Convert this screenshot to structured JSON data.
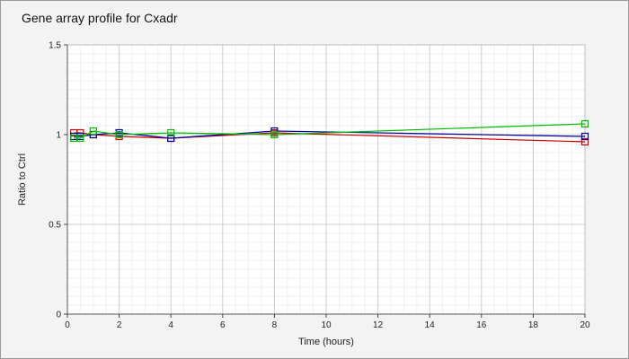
{
  "chart_data": {
    "type": "line",
    "title": "Gene array profile for Cxadr",
    "xlabel": "Time (hours)",
    "ylabel": "Ratio to Ctrl",
    "xlim": [
      0,
      20
    ],
    "ylim": [
      0,
      1.5
    ],
    "x_ticks": [
      "0",
      "2",
      "4",
      "6",
      "8",
      "10",
      "12",
      "14",
      "16",
      "18",
      "20"
    ],
    "y_ticks": [
      "0",
      "0.5",
      "1",
      "1.5"
    ],
    "grid": true,
    "legend": "none",
    "series": [
      {
        "color": "#cc0000",
        "x": [
          0.25,
          0.5,
          1,
          2,
          4,
          8,
          20
        ],
        "y": [
          1.01,
          1.01,
          1.0,
          0.99,
          0.98,
          1.01,
          0.96
        ]
      },
      {
        "color": "#000099",
        "x": [
          0.25,
          0.5,
          1,
          2,
          4,
          8,
          20
        ],
        "y": [
          0.99,
          0.99,
          1.0,
          1.01,
          0.98,
          1.02,
          0.99
        ]
      },
      {
        "color": "#00bb00",
        "x": [
          0.25,
          0.5,
          1,
          2,
          4,
          8,
          20
        ],
        "y": [
          0.98,
          0.98,
          1.02,
          1.0,
          1.01,
          1.0,
          1.06
        ]
      }
    ]
  }
}
